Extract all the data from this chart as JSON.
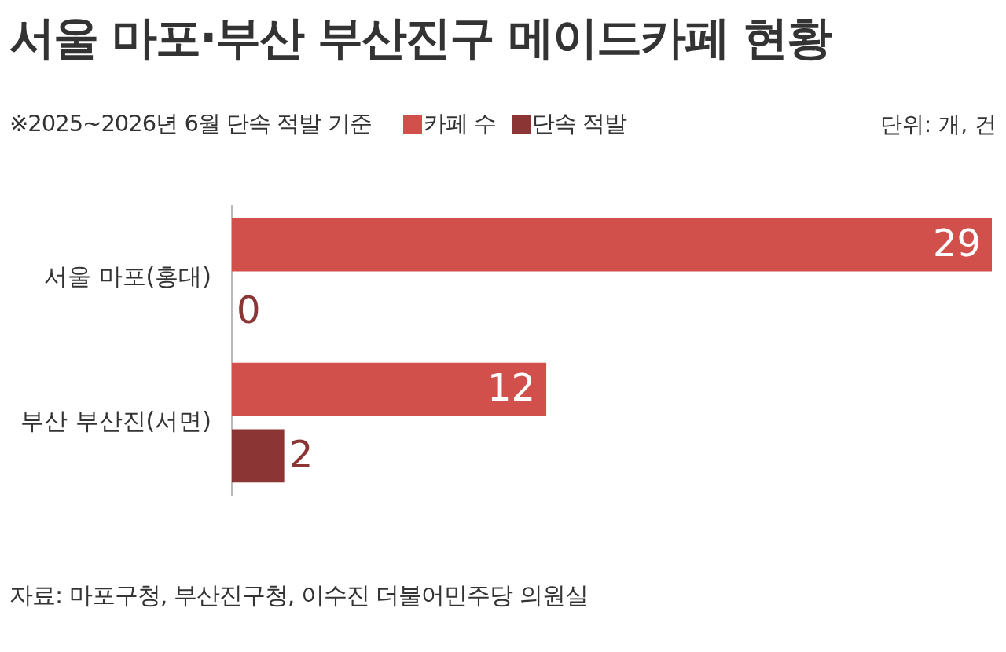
{
  "chart_data": {
    "type": "bar",
    "orientation": "horizontal",
    "title": "서울 마포·부산 부산진구 메이드카페 현황",
    "subtitle": "※2025~2026년 6월 단속 적발 기준",
    "annotations": [
      "단위: 개, 건",
      "자료: 마포구청, 부산진구청, 이수진 더불어민주당 의원실"
    ],
    "categories": [
      "서울 마포(홍대)",
      "부산 부산진(서면)"
    ],
    "series": [
      {
        "name": "카페 수",
        "color": "#d1504b",
        "values": [
          29,
          12
        ]
      },
      {
        "name": "단속 적발",
        "color": "#8b3535",
        "values": [
          0,
          2
        ]
      }
    ],
    "xlim": [
      0,
      29
    ],
    "data_labels": true,
    "legend": "top",
    "tick_labels": "y"
  }
}
